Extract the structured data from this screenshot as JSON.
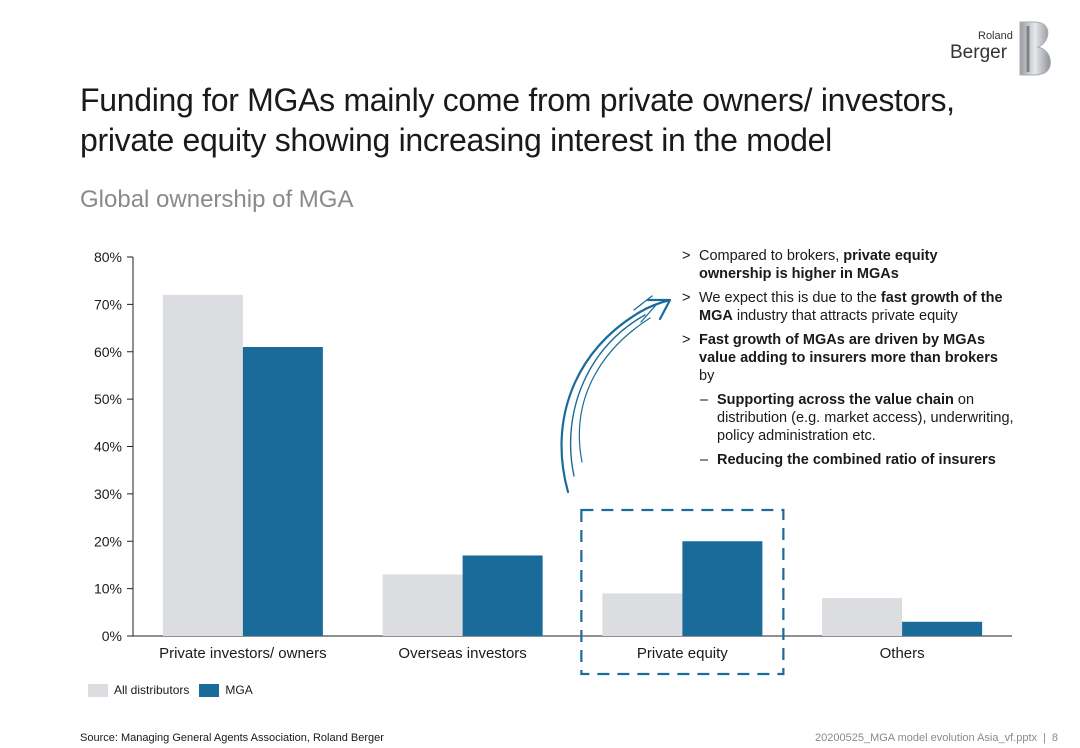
{
  "title_line1": "Funding for MGAs mainly come from private owners/ investors,",
  "title_line2": "private equity showing increasing interest in the model",
  "subtitle": "Global ownership of MGA",
  "logo": {
    "small": "Roland",
    "large": "Berger",
    "mark": "B"
  },
  "colors": {
    "all_distributors": "#dcdde0",
    "mga": "#1b6b9a",
    "highlight": "#1b6b9a",
    "axis": "#222222"
  },
  "chart_data": {
    "type": "bar",
    "title": "Global ownership of MGA",
    "categories": [
      "Private investors/ owners",
      "Overseas investors",
      "Private equity",
      "Others"
    ],
    "series": [
      {
        "name": "All distributors",
        "values": [
          72,
          13,
          9,
          8
        ]
      },
      {
        "name": "MGA",
        "values": [
          61,
          17,
          20,
          3
        ]
      }
    ],
    "ylim": [
      0,
      80
    ],
    "yticks": [
      "0%",
      "10%",
      "20%",
      "30%",
      "40%",
      "50%",
      "60%",
      "70%",
      "80%"
    ],
    "highlighted_category": "Private equity",
    "xlabel": "",
    "ylabel": ""
  },
  "legend": {
    "all_distributors": "All distributors",
    "mga": "MGA"
  },
  "commentary": {
    "marker": ">",
    "dash": "–",
    "b1_pre": "Compared to brokers, ",
    "b1_bold": "private equity ownership is higher in MGAs",
    "b2_pre": "We expect this is due to the ",
    "b2_bold": "fast growth of the MGA",
    "b2_post": " industry that attracts private equity",
    "b3_bold": "Fast growth of MGAs are driven by MGAs value adding to insurers more than brokers",
    "b3_post": " by",
    "s1_bold": "Supporting across the value chain",
    "s1_post": " on distribution (e.g. market access), underwriting, policy administration etc.",
    "s2_bold": "Reducing the combined ratio of insurers"
  },
  "footer": {
    "source": "Source: Managing General Agents Association, Roland Berger",
    "file": "20200525_MGA model evolution Asia_vf.pptx",
    "page": "8"
  }
}
